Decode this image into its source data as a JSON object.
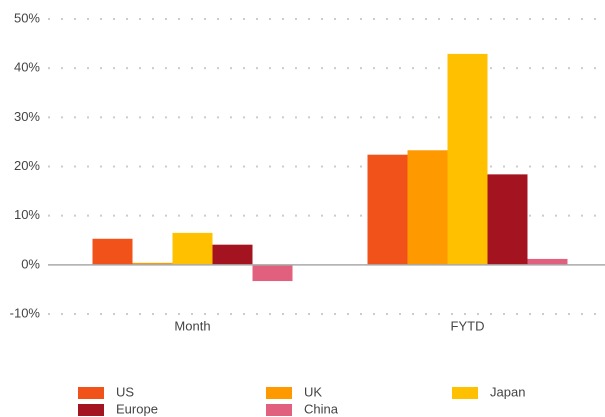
{
  "chart_data": {
    "type": "bar",
    "categories": [
      "Month",
      "FYTD"
    ],
    "series": [
      {
        "name": "US",
        "color": "#f0521a",
        "values": [
          5.3,
          22.4
        ]
      },
      {
        "name": "UK",
        "color": "#ff9900",
        "values": [
          0.4,
          23.3
        ]
      },
      {
        "name": "Japan",
        "color": "#ffc000",
        "values": [
          6.5,
          42.9
        ]
      },
      {
        "name": "Europe",
        "color": "#a31420",
        "values": [
          4.1,
          18.4
        ]
      },
      {
        "name": "China",
        "color": "#e0607e",
        "values": [
          -3.3,
          1.2
        ]
      }
    ],
    "ylim": [
      -10,
      50
    ],
    "yticks": [
      {
        "value": -10,
        "label": "-10%"
      },
      {
        "value": 0,
        "label": "0%"
      },
      {
        "value": 10,
        "label": "10%"
      },
      {
        "value": 20,
        "label": "20%"
      },
      {
        "value": 30,
        "label": "30%"
      },
      {
        "value": 40,
        "label": "40%"
      },
      {
        "value": 50,
        "label": "50%"
      }
    ],
    "grid": true,
    "legend": "bottom"
  }
}
